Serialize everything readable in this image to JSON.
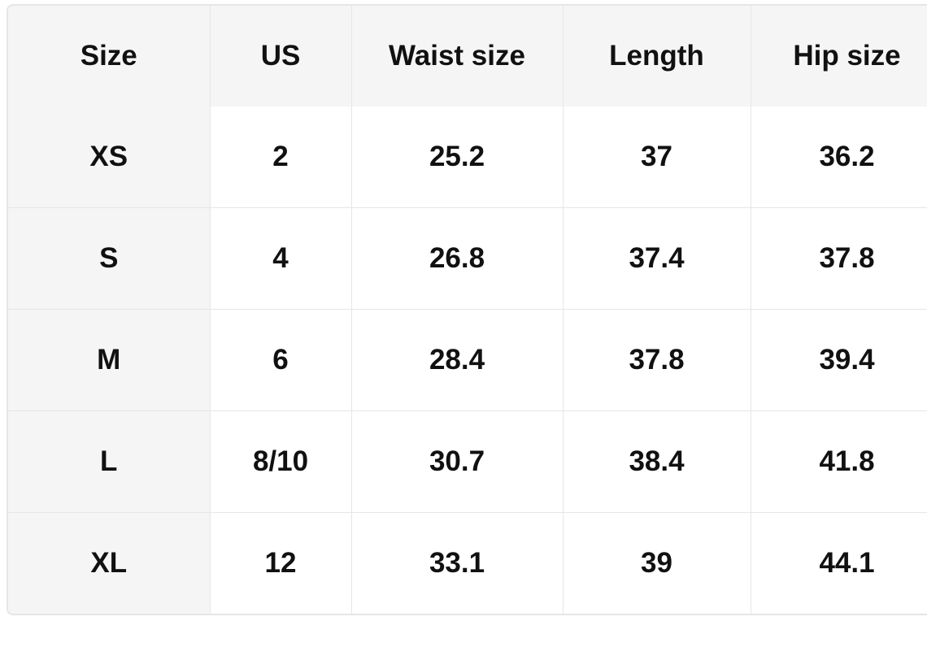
{
  "table": {
    "header": [
      "Size",
      "US",
      "Waist size",
      "Length",
      "Hip size"
    ],
    "rows": [
      [
        "XS",
        "2",
        "25.2",
        "37",
        "36.2"
      ],
      [
        "S",
        "4",
        "26.8",
        "37.4",
        "37.8"
      ],
      [
        "M",
        "6",
        "28.4",
        "37.8",
        "39.4"
      ],
      [
        "L",
        "8/10",
        "30.7",
        "38.4",
        "41.8"
      ],
      [
        "XL",
        "12",
        "33.1",
        "39",
        "44.1"
      ]
    ]
  }
}
